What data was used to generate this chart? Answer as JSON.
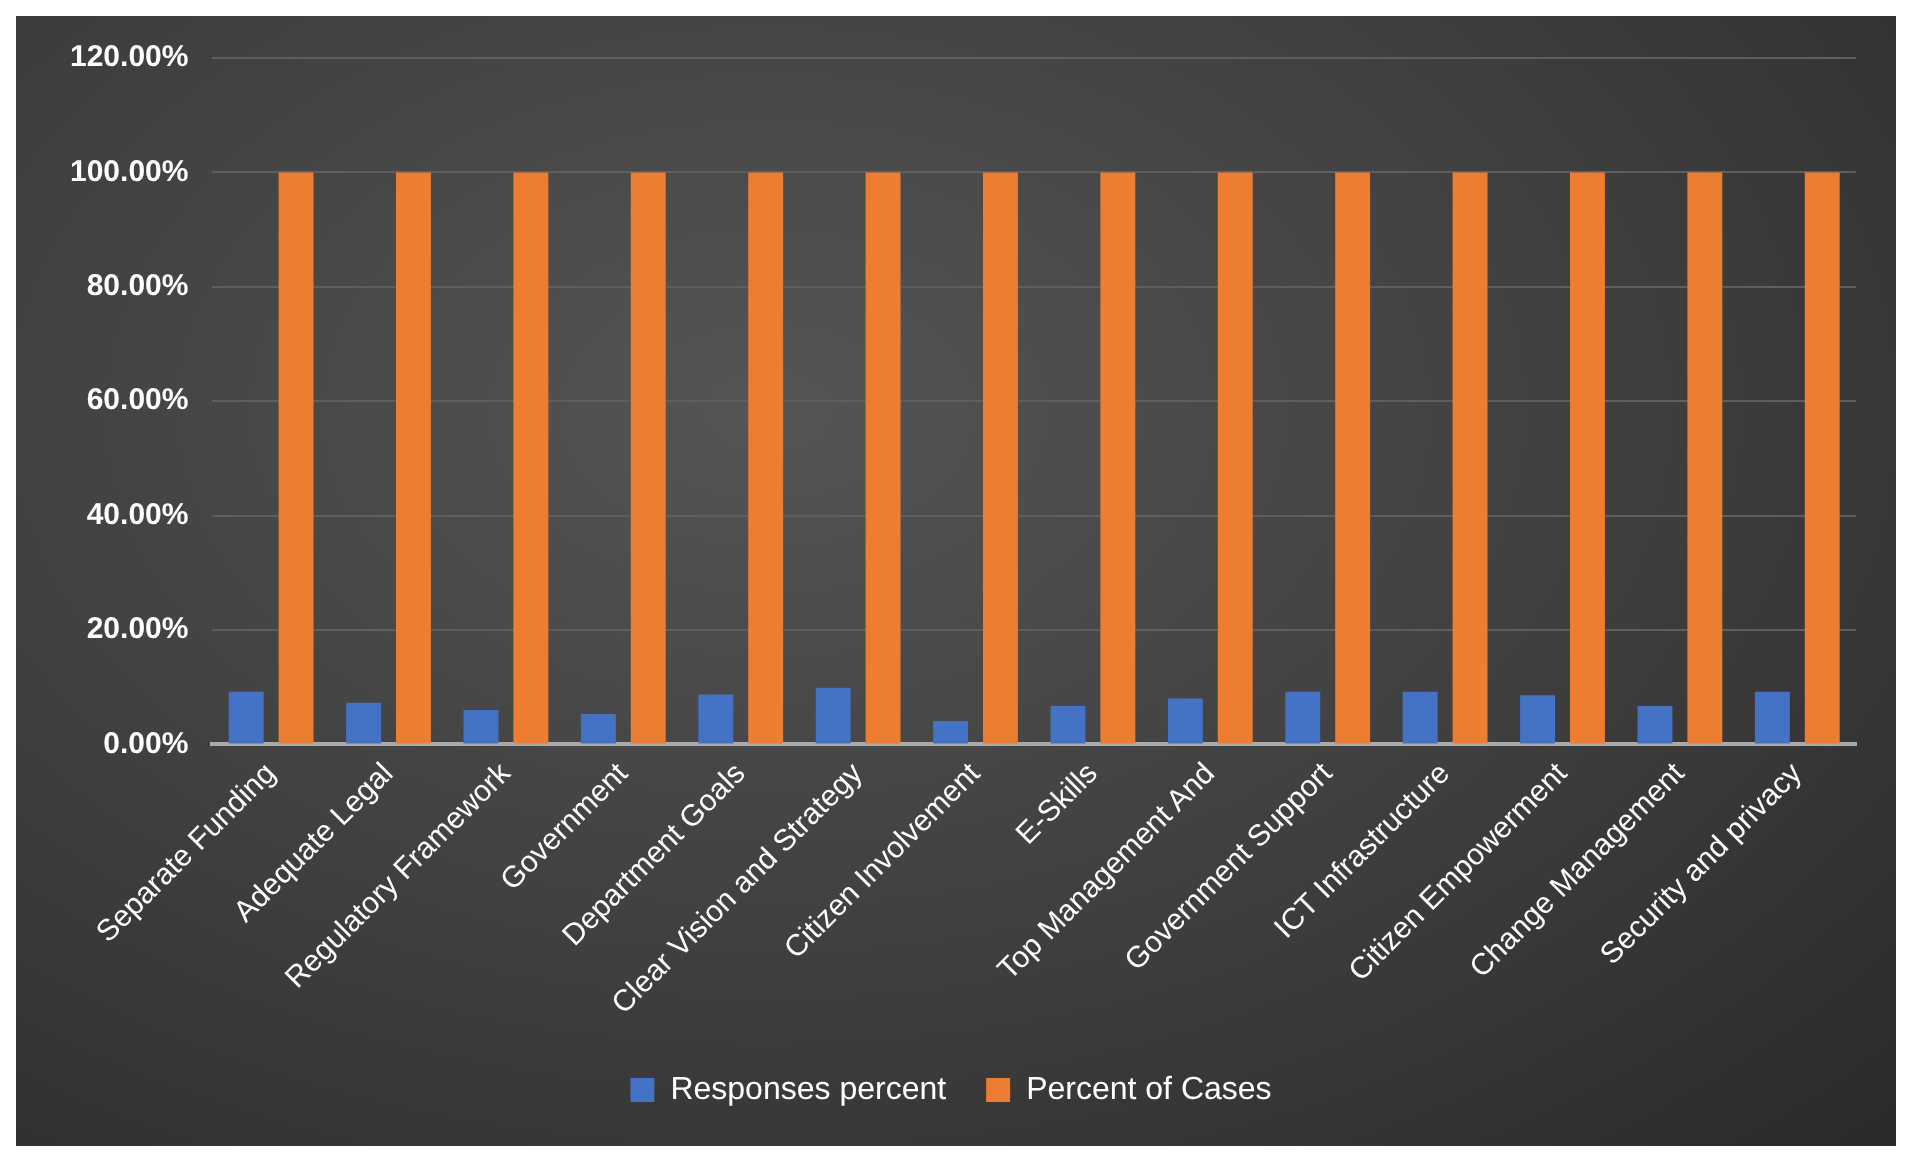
{
  "chart_data": {
    "type": "bar",
    "categories": [
      "Separate Funding",
      "Adequate Legal",
      "Regulatory Framework",
      "Government",
      "Department Goals",
      "Clear Vision and Strategy",
      "Citizen Involvement",
      "E-Skills",
      "Top Management And",
      "Government Support",
      "ICT Infrastructure",
      "Citizen Empowerment",
      "Change Management",
      "Security and privacy"
    ],
    "series": [
      {
        "name": "Responses percent",
        "color": "#4472c4",
        "values": [
          9.2,
          7.3,
          6.0,
          5.3,
          8.7,
          9.9,
          4.1,
          6.7,
          8.0,
          9.2,
          9.2,
          8.6,
          6.7,
          9.2
        ]
      },
      {
        "name": "Percent of Cases",
        "color": "#ed7d31",
        "values": [
          100,
          100,
          100,
          100,
          100,
          100,
          100,
          100,
          100,
          100,
          100,
          100,
          100,
          100
        ]
      }
    ],
    "ylim": [
      0,
      120
    ],
    "yticks": [
      {
        "value": 0,
        "label": "0.00%"
      },
      {
        "value": 20,
        "label": "20.00%"
      },
      {
        "value": 40,
        "label": "40.00%"
      },
      {
        "value": 60,
        "label": "60.00%"
      },
      {
        "value": 80,
        "label": "80.00%"
      },
      {
        "value": 100,
        "label": "100.00%"
      },
      {
        "value": 120,
        "label": "120.00%"
      }
    ],
    "grid": "y",
    "legend": "bottom"
  }
}
